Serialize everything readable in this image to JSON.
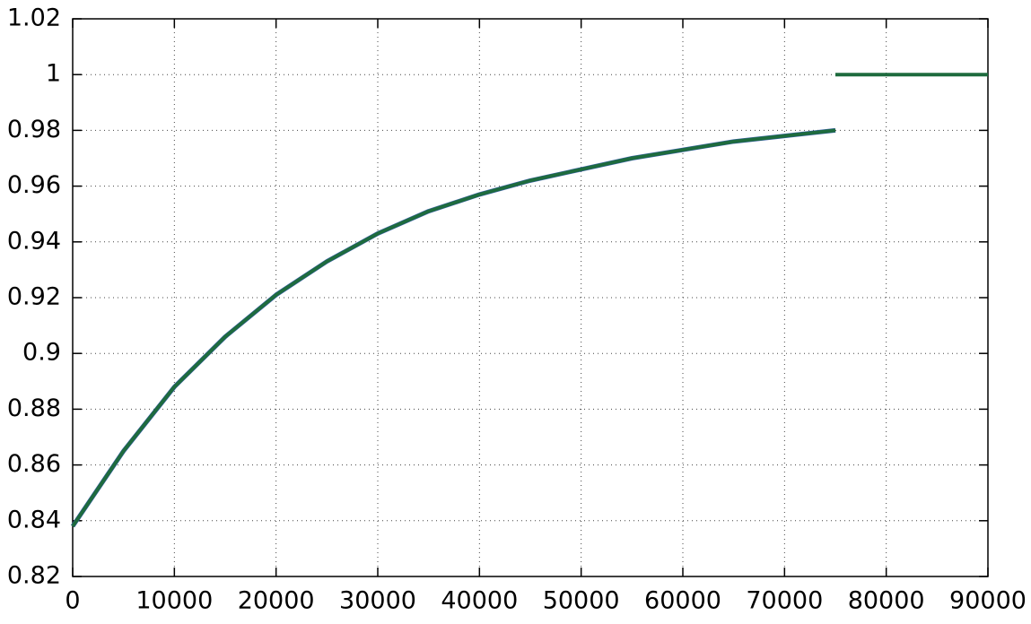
{
  "chart_data": {
    "type": "line",
    "xlim": [
      0,
      90000
    ],
    "xticks": [
      0,
      10000,
      20000,
      30000,
      40000,
      50000,
      60000,
      70000,
      80000,
      90000
    ],
    "ylim": [
      0.82,
      1.02
    ],
    "yticks": [
      0.82,
      0.84,
      0.86,
      0.88,
      0.9,
      0.92,
      0.94,
      0.96,
      0.98,
      1,
      1.02
    ],
    "grid": true,
    "series": [
      {
        "color": "#3a5fb0",
        "x": [
          0,
          5000,
          10000,
          15000,
          20000,
          25000,
          30000,
          35000,
          40000,
          45000,
          50000,
          55000,
          60000,
          65000,
          70000,
          75000
        ],
        "values": [
          0.838,
          0.865,
          0.888,
          0.906,
          0.921,
          0.933,
          0.943,
          0.951,
          0.957,
          0.962,
          0.966,
          0.97,
          0.973,
          0.976,
          0.978,
          0.98
        ]
      },
      {
        "color": "#1e6b3e",
        "x": [
          0,
          5000,
          10000,
          15000,
          20000,
          25000,
          30000,
          35000,
          40000,
          45000,
          50000,
          55000,
          60000,
          65000,
          70000,
          75000,
          null,
          75000,
          90000
        ],
        "values": [
          0.838,
          0.865,
          0.888,
          0.906,
          0.921,
          0.933,
          0.943,
          0.951,
          0.957,
          0.962,
          0.966,
          0.97,
          0.973,
          0.976,
          0.978,
          0.98,
          null,
          1,
          1
        ]
      }
    ]
  }
}
